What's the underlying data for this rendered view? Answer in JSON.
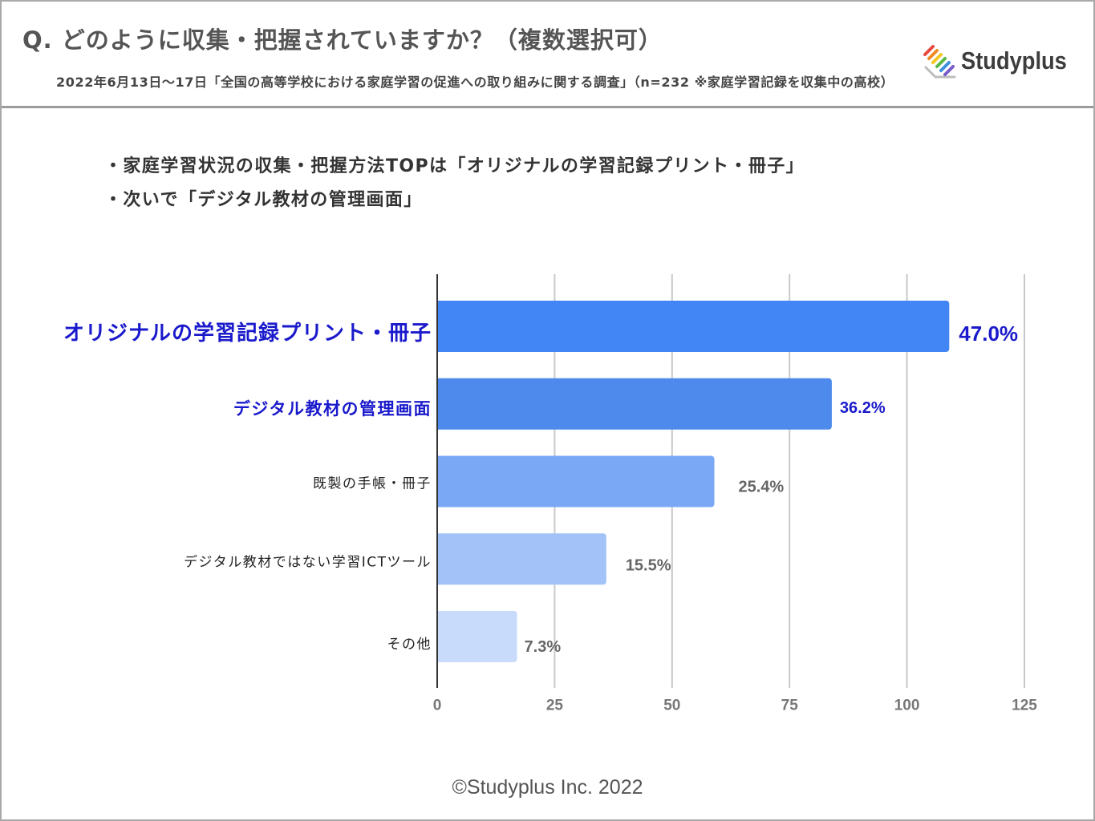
{
  "header": {
    "title": "Q. どのように収集・把握されていますか？（複数選択可）",
    "subtitle": "2022年6月13日～17日「全国の高等学校における家庭学習の促進への取り組みに関する調査」（n=232 ※家庭学習記録を収集中の高校）"
  },
  "logo": {
    "text": "Studyplus",
    "icon": "studyplus-logo-icon",
    "stripe_colors": [
      "#e84a3f",
      "#f08a24",
      "#f5c723",
      "#5bb947",
      "#3e8fdc",
      "#7a5cc8"
    ]
  },
  "summary": {
    "bullets": [
      "・家庭学習状況の収集・把握方法TOPは「オリジナルの学習記録プリント・冊子」",
      "・次いで「デジタル教材の管理画面」"
    ]
  },
  "chart_data": {
    "type": "bar",
    "horizontal": true,
    "categories": [
      "オリジナルの学習記録プリント・冊子",
      "デジタル教材の管理画面",
      "既製の手帳・冊子",
      "デジタル教材ではない学習ICTツール",
      "その他"
    ],
    "values": [
      109,
      84,
      59,
      36,
      17
    ],
    "data_labels": [
      "47.0%",
      "36.2%",
      "25.4%",
      "15.5%",
      "7.3%"
    ],
    "xlim": [
      0,
      125
    ],
    "xticks": [
      0,
      25,
      50,
      75,
      100,
      125
    ],
    "grid": true,
    "legend": false,
    "bar_colors": [
      "#4285f4",
      "#4d8aeb",
      "#7ba8f4",
      "#a3c2f7",
      "#c9dbfa"
    ],
    "category_label_colors": [
      "#1a1acc",
      "#1a1acc",
      "#222222",
      "#222222",
      "#222222"
    ],
    "data_label_colors": [
      "#1a1acc",
      "#1a1acc",
      "#666666",
      "#666666",
      "#666666"
    ]
  },
  "footer": {
    "copyright": "©Studyplus Inc. 2022"
  }
}
